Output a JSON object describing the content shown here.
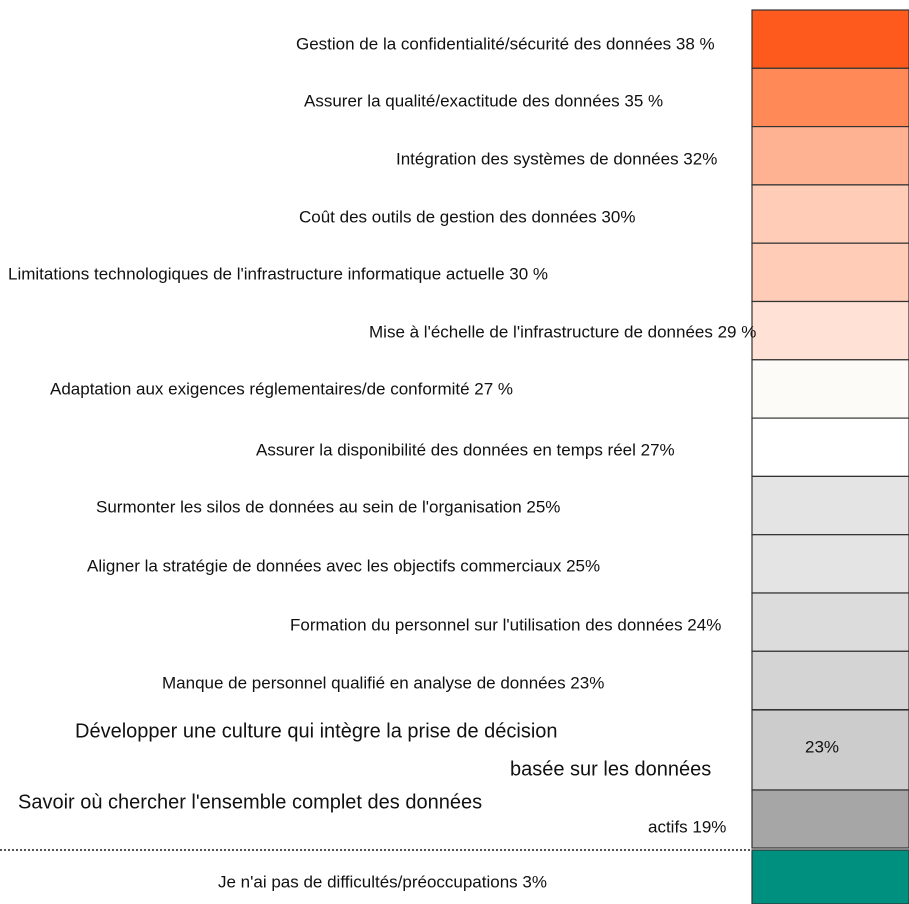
{
  "items": [
    {
      "label": [
        "Gestion de la confidentialité/sécurité des données 38 %"
      ],
      "color": "#fe5a1d"
    },
    {
      "label": [
        "Assurer la qualité/exactitude des données 35 %"
      ],
      "color": "#ff8a58"
    },
    {
      "label": [
        "Intégration des systèmes de données 32%"
      ],
      "color": "#ffb291"
    },
    {
      "label": [
        "Coût des outils de gestion des données 30%"
      ],
      "color": "#ffcdb7"
    },
    {
      "label": [
        "Limitations technologiques de l'infrastructure informatique actuelle 30 %"
      ],
      "color": "#ffcdb7"
    },
    {
      "label": [
        "Mise à l'échelle de l'infrastructure de données 29 %"
      ],
      "color": "#ffe2d5"
    },
    {
      "label": [
        "Adaptation aux exigences réglementaires/de conformité 27 %"
      ],
      "color": "#fdfbf8"
    },
    {
      "label": [
        "Assurer la disponibilité des données en temps réel 27%"
      ],
      "color": "#ffffff"
    },
    {
      "label": [
        "Surmonter les silos de données au sein de l'organisation 25%"
      ],
      "color": "#e4e4e4"
    },
    {
      "label": [
        "Aligner la stratégie de données avec les objectifs commerciaux 25%"
      ],
      "color": "#e4e4e4"
    },
    {
      "label": [
        "Formation du personnel sur l'utilisation des données 24%"
      ],
      "color": "#dcdcdc"
    },
    {
      "label": [
        "Manque de personnel qualifié en analyse de données 23%"
      ],
      "color": "#d4d4d4"
    },
    {
      "label": [
        "Développer une culture qui intègre la prise de décision",
        "basée sur les données",
        "23%"
      ],
      "color": "#cccccc"
    },
    {
      "label": [
        "Savoir où chercher l'ensemble complet des données",
        "actifs 19%"
      ],
      "color": "#a6a6a6"
    },
    {
      "label": [
        "Je n'ai pas de difficultés/préoccupations 3%"
      ],
      "color": "#00907f"
    }
  ]
}
